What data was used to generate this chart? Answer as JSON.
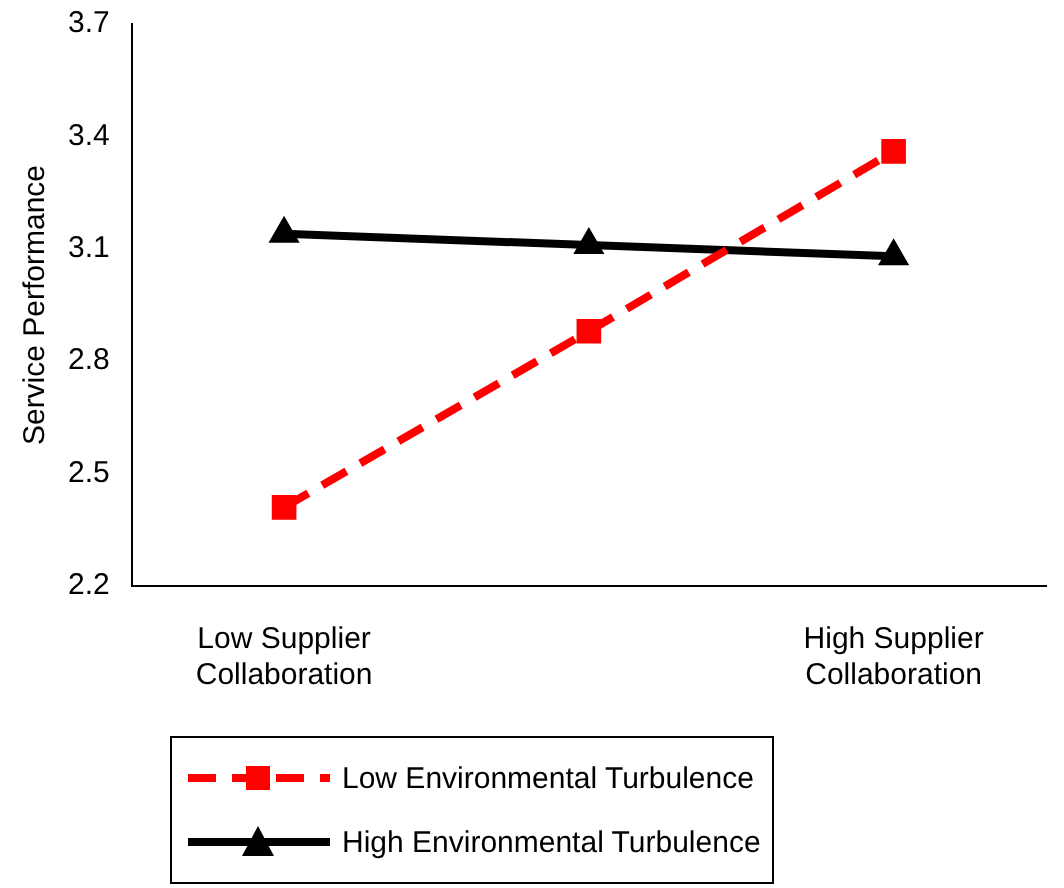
{
  "chart_data": {
    "type": "line",
    "ylabel": "Service Performance",
    "categories": [
      "Low Supplier Collaboration",
      null,
      "High Supplier Collaboration"
    ],
    "series": [
      {
        "name": "Low Environmental Turbulence",
        "color": "#ff0000",
        "values": [
          2.41,
          2.88,
          3.36
        ],
        "marker": "square",
        "line_style": "dashed"
      },
      {
        "name": "High Environmental Turbulence",
        "color": "#000000",
        "values": [
          3.14,
          3.11,
          3.08
        ],
        "marker": "triangle",
        "line_style": "solid"
      }
    ],
    "ylim": [
      2.2,
      3.7
    ],
    "yticks": [
      2.2,
      2.5,
      2.8,
      3.1,
      3.4,
      3.7
    ],
    "grid": false,
    "legend": "bottom"
  }
}
